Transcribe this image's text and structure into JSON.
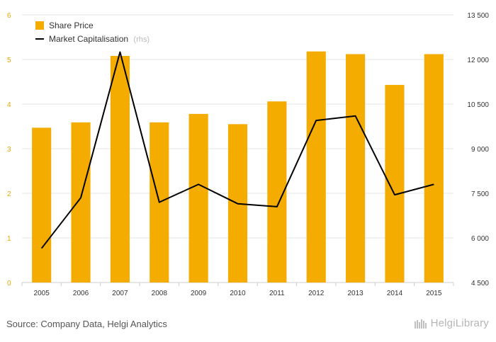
{
  "chart_data": {
    "type": "bar",
    "categories": [
      "2005",
      "2006",
      "2007",
      "2008",
      "2009",
      "2010",
      "2011",
      "2012",
      "2013",
      "2014",
      "2015"
    ],
    "series": [
      {
        "name": "Share Price",
        "type": "bar",
        "axis": "left",
        "values": [
          3.47,
          3.59,
          5.08,
          3.59,
          3.78,
          3.55,
          4.06,
          5.18,
          5.12,
          4.43,
          5.12
        ]
      },
      {
        "name": "Market Capitalisation",
        "type": "line",
        "axis": "right",
        "values": [
          5650,
          7350,
          12250,
          7200,
          7800,
          7150,
          7050,
          9950,
          10100,
          7450,
          7800
        ]
      }
    ],
    "left_axis": {
      "min": 0,
      "max": 6,
      "ticks": [
        "0",
        "1",
        "2",
        "3",
        "4",
        "5",
        "6"
      ]
    },
    "right_axis": {
      "min": 4500,
      "max": 13500,
      "ticks": [
        "4 500",
        "6 000",
        "7 500",
        "9 000",
        "10 500",
        "12 000",
        "13 500"
      ]
    },
    "legend": {
      "placement": "top-left",
      "items": [
        {
          "label": "Share Price",
          "suffix": ""
        },
        {
          "label": "Market Capitalisation",
          "suffix": "(rhs)"
        }
      ]
    },
    "grid": true,
    "colors": {
      "bar": "#f5ac00",
      "line": "#000000",
      "left_ticks": "#e8a600",
      "grid": "#e6e6e6"
    }
  },
  "footer": {
    "source": "Source: Company Data, Helgi Analytics",
    "logo_text": "HelgiLibrary"
  }
}
